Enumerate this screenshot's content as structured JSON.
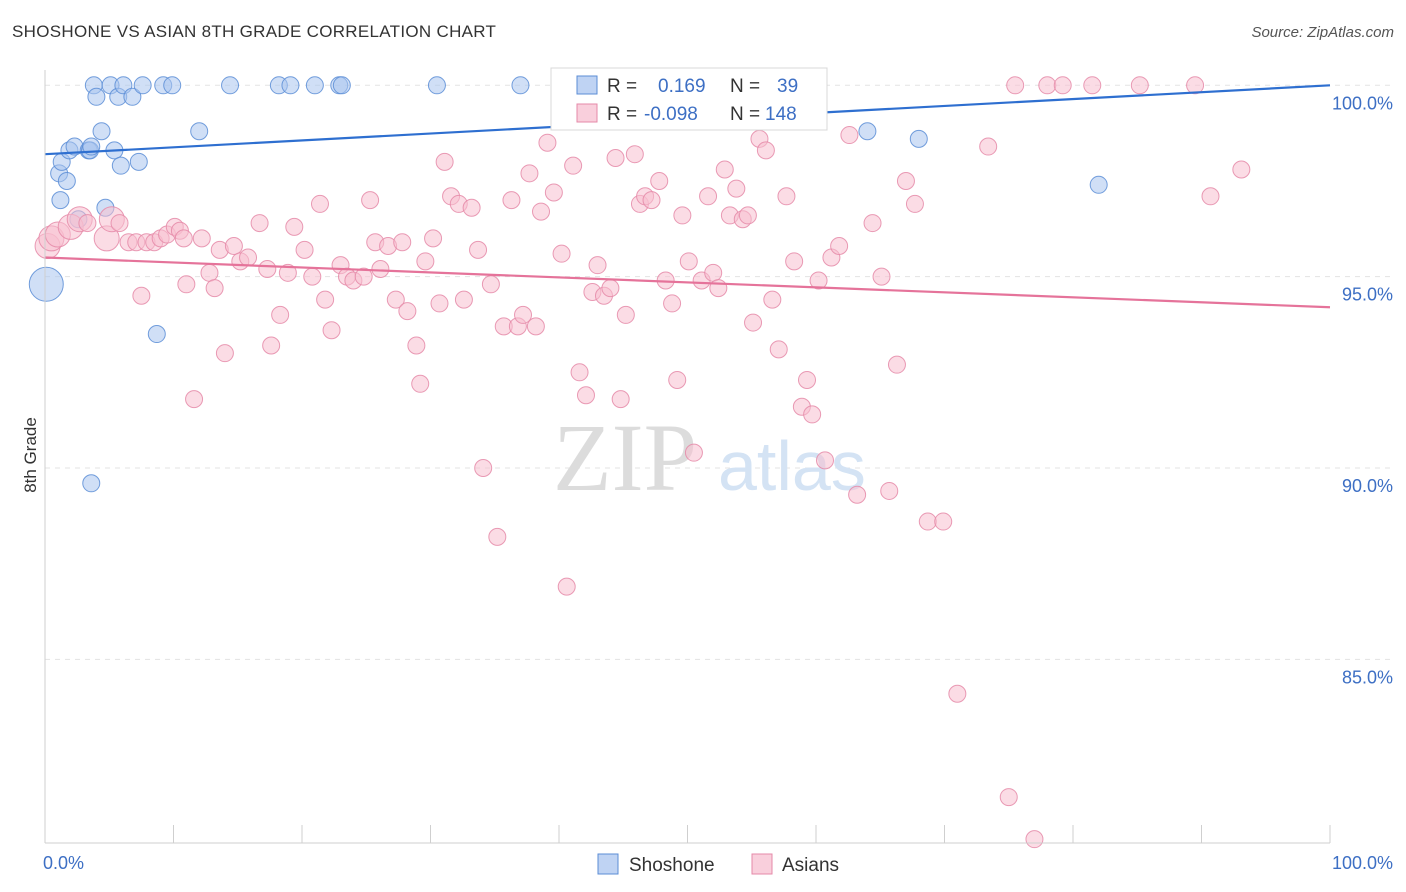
{
  "title": "SHOSHONE VS ASIAN 8TH GRADE CORRELATION CHART",
  "source": "Source: ZipAtlas.com",
  "watermark": {
    "zip": "ZIP",
    "atlas": "atlas"
  },
  "colors": {
    "shoshone_fill": "#a9c4ef",
    "shoshone_stroke": "#5b8dd6",
    "shoshone_line": "#2e6fd0",
    "asians_fill": "#f7bfd0",
    "asians_stroke": "#e58aa8",
    "asians_line": "#e5739a",
    "tick_text": "#3d6fc4",
    "grid": "#e3e3e3"
  },
  "stats": {
    "shoshone": {
      "r_label": "R =",
      "r_value": "0.169",
      "n_label": "N =",
      "n_value": "39"
    },
    "asians": {
      "r_label": "R =",
      "r_value": "-0.098",
      "n_label": "N =",
      "n_value": "148"
    }
  },
  "chart_data": {
    "type": "scatter",
    "title": "SHOSHONE VS ASIAN 8TH GRADE CORRELATION CHART",
    "xlabel": "",
    "ylabel": "8th Grade",
    "xlim": [
      0,
      100
    ],
    "ylim": [
      80.2,
      100.4
    ],
    "x_tick_labels": [
      "0.0%",
      "100.0%"
    ],
    "y_ticks": [
      85,
      90,
      95,
      100
    ],
    "y_tick_labels": [
      "85.0%",
      "90.0%",
      "95.0%",
      "100.0%"
    ],
    "grid": "horizontal dashed",
    "legend_position": "bottom-center",
    "series": [
      {
        "name": "Shoshone",
        "trend": [
          [
            0,
            98.2
          ],
          [
            100,
            100.0
          ]
        ],
        "points": [
          [
            0.1,
            94.8,
            3
          ],
          [
            1.1,
            97.7,
            1
          ],
          [
            1.2,
            97.0,
            1
          ],
          [
            1.3,
            98.0,
            1
          ],
          [
            1.7,
            97.5,
            1
          ],
          [
            1.9,
            98.3,
            1
          ],
          [
            2.3,
            98.4,
            1
          ],
          [
            2.6,
            96.5,
            1
          ],
          [
            3.4,
            98.3,
            1
          ],
          [
            3.5,
            98.3,
            1
          ],
          [
            3.6,
            98.4,
            1
          ],
          [
            3.6,
            89.6,
            1
          ],
          [
            3.8,
            100.0,
            1
          ],
          [
            4.0,
            99.7,
            1
          ],
          [
            4.4,
            98.8,
            1
          ],
          [
            4.7,
            96.8,
            1
          ],
          [
            5.1,
            100.0,
            1
          ],
          [
            5.4,
            98.3,
            1
          ],
          [
            5.7,
            99.7,
            1
          ],
          [
            5.9,
            97.9,
            1
          ],
          [
            6.1,
            100.0,
            1
          ],
          [
            6.8,
            99.7,
            1
          ],
          [
            7.3,
            98.0,
            1
          ],
          [
            7.6,
            100.0,
            1
          ],
          [
            8.7,
            93.5,
            1
          ],
          [
            9.2,
            100.0,
            1
          ],
          [
            9.9,
            100.0,
            1
          ],
          [
            12.0,
            98.8,
            1
          ],
          [
            14.4,
            100.0,
            1
          ],
          [
            18.2,
            100.0,
            1
          ],
          [
            19.1,
            100.0,
            1
          ],
          [
            21.0,
            100.0,
            1
          ],
          [
            22.9,
            100.0,
            1
          ],
          [
            23.1,
            100.0,
            1
          ],
          [
            30.5,
            100.0,
            1
          ],
          [
            37.0,
            100.0,
            1
          ],
          [
            64.0,
            98.8,
            1
          ],
          [
            68.0,
            98.6,
            1
          ],
          [
            82.0,
            97.4,
            1
          ]
        ]
      },
      {
        "name": "Asians",
        "trend": [
          [
            0,
            95.5
          ],
          [
            100,
            94.2
          ]
        ],
        "points": [
          [
            0.2,
            95.8,
            2
          ],
          [
            0.5,
            96.0,
            2
          ],
          [
            1.0,
            96.1,
            2
          ],
          [
            2.0,
            96.3,
            2
          ],
          [
            2.7,
            96.5,
            2
          ],
          [
            3.3,
            96.4,
            1
          ],
          [
            4.8,
            96.0,
            2
          ],
          [
            5.2,
            96.5,
            2
          ],
          [
            5.8,
            96.4,
            1
          ],
          [
            6.5,
            95.9,
            1
          ],
          [
            7.1,
            95.9,
            1
          ],
          [
            7.5,
            94.5,
            1
          ],
          [
            7.9,
            95.9,
            1
          ],
          [
            8.5,
            95.9,
            1
          ],
          [
            9.0,
            96.0,
            1
          ],
          [
            9.5,
            96.1,
            1
          ],
          [
            10.1,
            96.3,
            1
          ],
          [
            10.5,
            96.2,
            1
          ],
          [
            10.8,
            96.0,
            1
          ],
          [
            11.0,
            94.8,
            1
          ],
          [
            11.6,
            91.8,
            1
          ],
          [
            12.2,
            96.0,
            1
          ],
          [
            12.8,
            95.1,
            1
          ],
          [
            13.2,
            94.7,
            1
          ],
          [
            13.6,
            95.7,
            1
          ],
          [
            14.0,
            93.0,
            1
          ],
          [
            14.7,
            95.8,
            1
          ],
          [
            15.2,
            95.4,
            1
          ],
          [
            15.8,
            95.5,
            1
          ],
          [
            16.7,
            96.4,
            1
          ],
          [
            17.3,
            95.2,
            1
          ],
          [
            17.6,
            93.2,
            1
          ],
          [
            18.3,
            94.0,
            1
          ],
          [
            18.9,
            95.1,
            1
          ],
          [
            19.4,
            96.3,
            1
          ],
          [
            20.2,
            95.7,
            1
          ],
          [
            20.8,
            95.0,
            1
          ],
          [
            21.4,
            96.9,
            1
          ],
          [
            21.8,
            94.4,
            1
          ],
          [
            22.3,
            93.6,
            1
          ],
          [
            23.0,
            95.3,
            1
          ],
          [
            23.5,
            95.0,
            1
          ],
          [
            24.0,
            94.9,
            1
          ],
          [
            24.8,
            95.0,
            1
          ],
          [
            25.3,
            97.0,
            1
          ],
          [
            25.7,
            95.9,
            1
          ],
          [
            26.1,
            95.2,
            1
          ],
          [
            26.7,
            95.8,
            1
          ],
          [
            27.3,
            94.4,
            1
          ],
          [
            27.8,
            95.9,
            1
          ],
          [
            28.2,
            94.1,
            1
          ],
          [
            28.9,
            93.2,
            1
          ],
          [
            29.2,
            92.2,
            1
          ],
          [
            29.6,
            95.4,
            1
          ],
          [
            30.2,
            96.0,
            1
          ],
          [
            30.7,
            94.3,
            1
          ],
          [
            31.1,
            98.0,
            1
          ],
          [
            31.6,
            97.1,
            1
          ],
          [
            32.2,
            96.9,
            1
          ],
          [
            32.6,
            94.4,
            1
          ],
          [
            33.2,
            96.8,
            1
          ],
          [
            33.7,
            95.7,
            1
          ],
          [
            34.1,
            90.0,
            1
          ],
          [
            34.7,
            94.8,
            1
          ],
          [
            35.2,
            88.2,
            1
          ],
          [
            35.7,
            93.7,
            1
          ],
          [
            36.3,
            97.0,
            1
          ],
          [
            36.8,
            93.7,
            1
          ],
          [
            37.2,
            94.0,
            1
          ],
          [
            37.7,
            97.7,
            1
          ],
          [
            38.2,
            93.7,
            1
          ],
          [
            38.6,
            96.7,
            1
          ],
          [
            39.1,
            98.5,
            1
          ],
          [
            39.6,
            97.2,
            1
          ],
          [
            40.2,
            95.6,
            1
          ],
          [
            40.6,
            86.9,
            1
          ],
          [
            41.1,
            97.9,
            1
          ],
          [
            41.6,
            92.5,
            1
          ],
          [
            42.1,
            91.9,
            1
          ],
          [
            42.6,
            94.6,
            1
          ],
          [
            43.0,
            95.3,
            1
          ],
          [
            43.5,
            94.5,
            1
          ],
          [
            44.0,
            94.7,
            1
          ],
          [
            44.4,
            98.1,
            1
          ],
          [
            44.8,
            91.8,
            1
          ],
          [
            45.2,
            94.0,
            1
          ],
          [
            45.9,
            98.2,
            1
          ],
          [
            46.3,
            96.9,
            1
          ],
          [
            46.7,
            97.1,
            1
          ],
          [
            47.2,
            97.0,
            1
          ],
          [
            47.8,
            97.5,
            1
          ],
          [
            48.3,
            94.9,
            1
          ],
          [
            48.8,
            94.3,
            1
          ],
          [
            49.2,
            92.3,
            1
          ],
          [
            49.6,
            96.6,
            1
          ],
          [
            50.1,
            95.4,
            1
          ],
          [
            50.5,
            90.4,
            1
          ],
          [
            51.1,
            94.9,
            1
          ],
          [
            51.6,
            97.1,
            1
          ],
          [
            52.0,
            95.1,
            1
          ],
          [
            52.4,
            94.7,
            1
          ],
          [
            52.9,
            97.8,
            1
          ],
          [
            53.3,
            96.6,
            1
          ],
          [
            53.8,
            97.3,
            1
          ],
          [
            54.3,
            96.5,
            1
          ],
          [
            54.7,
            96.6,
            1
          ],
          [
            55.1,
            93.8,
            1
          ],
          [
            55.6,
            98.6,
            1
          ],
          [
            56.1,
            98.3,
            1
          ],
          [
            56.6,
            94.4,
            1
          ],
          [
            57.1,
            93.1,
            1
          ],
          [
            57.7,
            97.1,
            1
          ],
          [
            58.3,
            95.4,
            1
          ],
          [
            58.9,
            91.6,
            1
          ],
          [
            59.3,
            92.3,
            1
          ],
          [
            59.7,
            91.4,
            1
          ],
          [
            60.2,
            94.9,
            1
          ],
          [
            60.7,
            90.2,
            1
          ],
          [
            61.2,
            95.5,
            1
          ],
          [
            61.8,
            95.8,
            1
          ],
          [
            62.6,
            98.7,
            1
          ],
          [
            63.2,
            89.3,
            1
          ],
          [
            64.4,
            96.4,
            1
          ],
          [
            65.1,
            95.0,
            1
          ],
          [
            65.7,
            89.4,
            1
          ],
          [
            66.3,
            92.7,
            1
          ],
          [
            67.0,
            97.5,
            1
          ],
          [
            67.7,
            96.9,
            1
          ],
          [
            68.7,
            88.6,
            1
          ],
          [
            69.9,
            88.6,
            1
          ],
          [
            71.0,
            84.1,
            1
          ],
          [
            73.4,
            98.4,
            1
          ],
          [
            75.5,
            100.0,
            1
          ],
          [
            78.0,
            100.0,
            1
          ],
          [
            79.2,
            100.0,
            1
          ],
          [
            81.5,
            100.0,
            1
          ],
          [
            85.2,
            100.0,
            1
          ],
          [
            89.5,
            100.0,
            1
          ],
          [
            90.7,
            97.1,
            1
          ],
          [
            93.1,
            97.8,
            1
          ],
          [
            75.0,
            81.4,
            1
          ],
          [
            77.0,
            80.3,
            1
          ]
        ]
      }
    ]
  },
  "legend": [
    {
      "key": "shoshone",
      "label": "Shoshone"
    },
    {
      "key": "asians",
      "label": "Asians"
    }
  ]
}
